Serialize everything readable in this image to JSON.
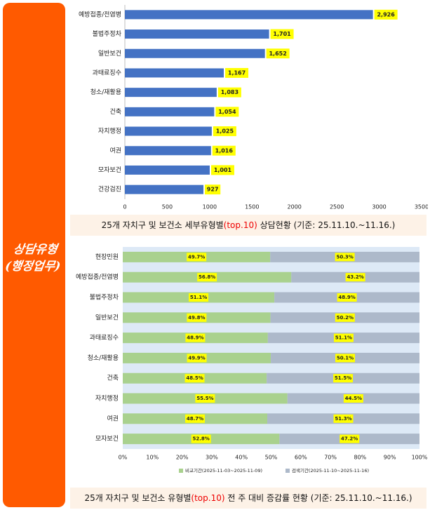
{
  "sidebar": {
    "label_line1": "상담유형",
    "label_line2": "(행정업무)"
  },
  "colors": {
    "sidebar": "#ff5a00",
    "bar_blue": "#4472c4",
    "value_label_bg": "#ffff00",
    "compare_green": "#a9d18e",
    "search_gray": "#adb9ca",
    "chart2_plot_bg": "#dde9f6",
    "caption_bg": "#fdf2e7",
    "caption_highlight": "#ee0000"
  },
  "captions": {
    "top": {
      "before": "25개 자치구 및 보건소 세부유형별",
      "highlight": "(top.10)",
      "after": " 상담현황  (기준: 25.11.10.~11.16.)"
    },
    "bottom": {
      "before": "25개 자치구 및 보건소 유형별",
      "highlight": "(top.10)",
      "after": " 전 주 대비 증감률 현황 (기준: 25.11.10.~11.16.)"
    }
  },
  "chart_data": [
    {
      "type": "bar",
      "orientation": "horizontal",
      "categories": [
        "예방접종/전염병",
        "불법주정차",
        "일반보건",
        "과태료징수",
        "청소/재활용",
        "건축",
        "자치행정",
        "여권",
        "모자보건",
        "건강검진"
      ],
      "values": [
        2926,
        1701,
        1652,
        1167,
        1083,
        1054,
        1025,
        1016,
        1001,
        927
      ],
      "value_labels": [
        "2,926",
        "1,701",
        "1,652",
        "1,167",
        "1,083",
        "1,054",
        "1,025",
        "1,016",
        "1,001",
        "927"
      ],
      "xlim": [
        0,
        3500
      ],
      "xticks": [
        "0",
        "500",
        "1000",
        "1500",
        "2000",
        "2500",
        "3000",
        "3500"
      ],
      "grid": false
    },
    {
      "type": "bar",
      "orientation": "horizontal",
      "stacked": "percent",
      "categories": [
        "현장민원",
        "예방접종/전염병",
        "불법주정차",
        "일반보건",
        "과태료징수",
        "청소/재활용",
        "건축",
        "자치행정",
        "여권",
        "모자보건"
      ],
      "series": [
        {
          "name": "비교기간(2025-11-03~2025-11-09)",
          "values": [
            49.7,
            56.8,
            51.1,
            49.8,
            48.9,
            49.9,
            48.5,
            55.5,
            48.7,
            52.8
          ],
          "labels": [
            "49.7%",
            "56.8%",
            "51.1%",
            "49.8%",
            "48.9%",
            "49.9%",
            "48.5%",
            "55.5%",
            "48.7%",
            "52.8%"
          ]
        },
        {
          "name": "검색기간(2025-11-10~2025-11-16)",
          "values": [
            50.3,
            43.2,
            48.9,
            50.2,
            51.1,
            50.1,
            51.5,
            44.5,
            51.3,
            47.2
          ],
          "labels": [
            "50.3%",
            "43.2%",
            "48.9%",
            "50.2%",
            "51.1%",
            "50.1%",
            "51.5%",
            "44.5%",
            "51.3%",
            "47.2%"
          ]
        }
      ],
      "xlim": [
        0,
        100
      ],
      "xticks": [
        "0%",
        "10%",
        "20%",
        "30%",
        "40%",
        "50%",
        "60%",
        "70%",
        "80%",
        "90%",
        "100%"
      ],
      "legend": "bottom",
      "grid": false
    }
  ]
}
